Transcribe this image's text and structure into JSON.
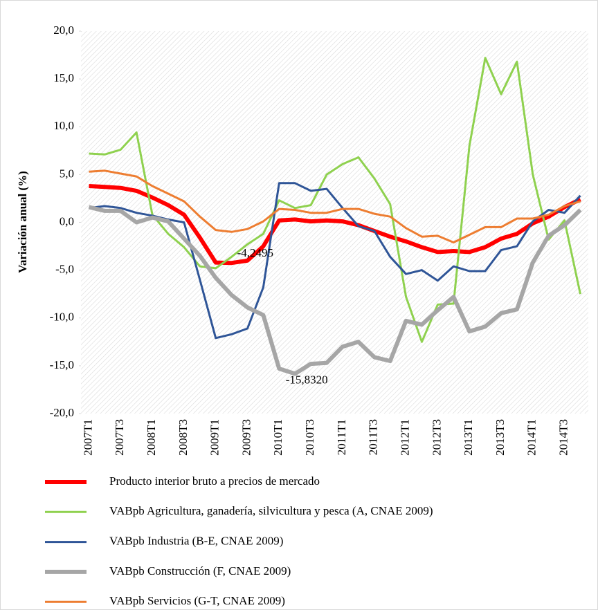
{
  "chart_data": {
    "type": "line",
    "ylabel": "Variación anual (%)",
    "categories": [
      "2007T1",
      null,
      "2007T3",
      null,
      "2008T1",
      null,
      "2008T3",
      null,
      "2009T1",
      null,
      "2009T3",
      null,
      "2010T1",
      null,
      "2010T3",
      null,
      "2011T1",
      null,
      "2011T3",
      null,
      "2012T1",
      null,
      "2012T3",
      null,
      "2013T1",
      null,
      "2013T3",
      null,
      "2014T1",
      null,
      "2014T3",
      null
    ],
    "ylim": [
      -20,
      20
    ],
    "yticks": [
      {
        "value": 20,
        "label": "20,0"
      },
      {
        "value": 15,
        "label": "15,0"
      },
      {
        "value": 10,
        "label": "10,0"
      },
      {
        "value": 5,
        "label": "5,0"
      },
      {
        "value": 0,
        "label": "0,0"
      },
      {
        "value": -5,
        "label": "-5,0"
      },
      {
        "value": -10,
        "label": "-10,0"
      },
      {
        "value": -15,
        "label": "-15,0"
      },
      {
        "value": -20,
        "label": "-20,0"
      }
    ],
    "legend": "bottom",
    "series": [
      {
        "name": "Producto interior bruto a precios de mercado",
        "color": "#ff0000",
        "width": 6,
        "values": [
          3.8,
          3.7,
          3.6,
          3.3,
          2.6,
          1.8,
          0.8,
          -1.6,
          -4.2,
          -4.2495,
          -4.0,
          -2.5,
          0.2,
          0.3,
          0.1,
          0.2,
          0.1,
          -0.3,
          -0.9,
          -1.5,
          -2.0,
          -2.6,
          -3.1,
          -3.0,
          -3.1,
          -2.6,
          -1.7,
          -1.2,
          -0.1,
          0.6,
          1.6,
          2.4
        ],
        "value_labels": [
          null,
          null,
          null,
          null,
          null,
          null,
          null,
          null,
          null,
          "-4,2495",
          null,
          null,
          null,
          null,
          null,
          null,
          null,
          null,
          null,
          null,
          null,
          null,
          null,
          null,
          null,
          null,
          null,
          null,
          null,
          null,
          null,
          null
        ]
      },
      {
        "name": "VABpb Agricultura, ganadería, silvicultura y pesca (A, CNAE 2009)",
        "color": "#8fd14f",
        "width": 3,
        "values": [
          7.2,
          7.1,
          7.6,
          9.4,
          0.8,
          -1.2,
          -2.6,
          -4.6,
          -4.8,
          -3.6,
          -2.3,
          -1.2,
          2.3,
          1.5,
          1.8,
          5.0,
          6.1,
          6.8,
          4.6,
          1.9,
          -7.8,
          -12.5,
          -8.6,
          -8.5,
          8.0,
          17.2,
          13.4,
          16.8,
          5.0,
          -1.8,
          0.2,
          -7.5
        ]
      },
      {
        "name": "VABpb Industria (B-E, CNAE 2009)",
        "color": "#2f5597",
        "width": 3,
        "values": [
          1.5,
          1.7,
          1.5,
          1.0,
          0.7,
          0.3,
          0.0,
          -6.0,
          -12.1,
          -11.7,
          -11.1,
          -6.8,
          4.1,
          4.1,
          3.3,
          3.5,
          1.5,
          -0.4,
          -0.9,
          -3.6,
          -5.4,
          -5.0,
          -6.1,
          -4.6,
          -5.1,
          -5.1,
          -2.9,
          -2.5,
          0.1,
          1.3,
          1.0,
          2.8
        ]
      },
      {
        "name": "VABpb Construcción (F, CNAE 2009)",
        "color": "#a6a6a6",
        "width": 6,
        "values": [
          1.6,
          1.2,
          1.2,
          0.0,
          0.5,
          0.1,
          -1.7,
          -3.5,
          -5.8,
          -7.6,
          -8.9,
          -9.7,
          -15.3,
          -15.832,
          -14.8,
          -14.7,
          -13.0,
          -12.5,
          -14.1,
          -14.5,
          -10.3,
          -10.7,
          -9.2,
          -7.8,
          -11.4,
          -10.9,
          -9.5,
          -9.1,
          -4.2,
          -1.4,
          -0.3,
          1.3
        ],
        "value_labels": [
          null,
          null,
          null,
          null,
          null,
          null,
          null,
          null,
          null,
          null,
          null,
          null,
          null,
          "-15,8320",
          null,
          null,
          null,
          null,
          null,
          null,
          null,
          null,
          null,
          null,
          null,
          null,
          null,
          null,
          null,
          null,
          null,
          null
        ]
      },
      {
        "name": "VABpb Servicios (G-T, CNAE 2009)",
        "color": "#ed7d31",
        "width": 3,
        "values": [
          5.3,
          5.4,
          5.1,
          4.8,
          3.8,
          3.0,
          2.2,
          0.6,
          -0.8,
          -1.0,
          -0.7,
          0.1,
          1.4,
          1.3,
          1.0,
          1.0,
          1.4,
          1.4,
          0.9,
          0.6,
          -0.6,
          -1.5,
          -1.4,
          -2.1,
          -1.3,
          -0.5,
          -0.5,
          0.4,
          0.4,
          0.8,
          1.7,
          2.2
        ]
      }
    ]
  }
}
